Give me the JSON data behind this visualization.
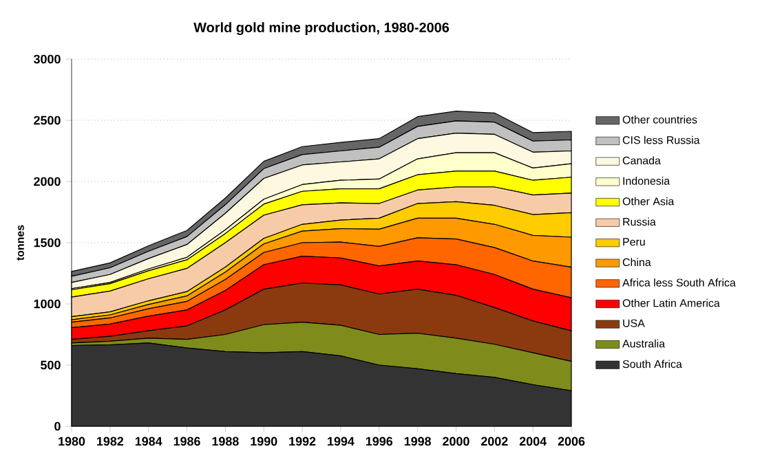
{
  "chart_data": {
    "type": "area",
    "stacked": true,
    "title": "World gold mine production, 1980-2006",
    "ylabel": "tonnes",
    "x": [
      1980,
      1982,
      1984,
      1986,
      1988,
      1990,
      1992,
      1994,
      1996,
      1998,
      2000,
      2002,
      2004,
      2006
    ],
    "xlim": [
      1980,
      2006
    ],
    "ylim": [
      0,
      3000
    ],
    "xticks": [
      1980,
      1982,
      1984,
      1986,
      1988,
      1990,
      1992,
      1994,
      1996,
      1998,
      2000,
      2002,
      2004,
      2006
    ],
    "yticks": [
      0,
      500,
      1000,
      1500,
      2000,
      2500,
      3000
    ],
    "grid": "y",
    "legend": "right",
    "series": [
      {
        "name": "South Africa",
        "color": "#333333",
        "values": [
          660,
          665,
          680,
          640,
          610,
          600,
          610,
          575,
          500,
          470,
          430,
          400,
          340,
          290
        ]
      },
      {
        "name": "Australia",
        "color": "#7f8c1c",
        "values": [
          20,
          30,
          40,
          70,
          140,
          230,
          240,
          250,
          250,
          290,
          290,
          270,
          260,
          240
        ]
      },
      {
        "name": "USA",
        "color": "#8b3a0f",
        "values": [
          30,
          40,
          60,
          110,
          200,
          290,
          320,
          330,
          330,
          360,
          350,
          300,
          260,
          250
        ]
      },
      {
        "name": "Other Latin America",
        "color": "#ff0000",
        "values": [
          95,
          100,
          120,
          130,
          160,
          200,
          220,
          220,
          230,
          230,
          250,
          270,
          260,
          270
        ]
      },
      {
        "name": "Africa less South Africa",
        "color": "#ff6600",
        "values": [
          45,
          50,
          60,
          70,
          90,
          100,
          110,
          130,
          160,
          190,
          210,
          220,
          230,
          250
        ]
      },
      {
        "name": "China",
        "color": "#ff9900",
        "values": [
          20,
          25,
          35,
          45,
          60,
          70,
          95,
          110,
          140,
          160,
          170,
          190,
          210,
          245
        ]
      },
      {
        "name": "Peru",
        "color": "#ffcc00",
        "values": [
          25,
          25,
          30,
          35,
          40,
          45,
          55,
          70,
          90,
          120,
          135,
          155,
          170,
          200
        ]
      },
      {
        "name": "Russia",
        "color": "#f8cba8",
        "values": [
          160,
          170,
          180,
          190,
          200,
          190,
          160,
          140,
          120,
          110,
          120,
          150,
          160,
          160
        ]
      },
      {
        "name": "Other Asia",
        "color": "#ffff00",
        "values": [
          60,
          60,
          65,
          70,
          75,
          90,
          110,
          115,
          120,
          125,
          130,
          130,
          120,
          130
        ]
      },
      {
        "name": "Indonesia",
        "color": "#ffffcc",
        "values": [
          10,
          10,
          15,
          20,
          30,
          40,
          55,
          70,
          80,
          130,
          150,
          150,
          100,
          110
        ]
      },
      {
        "name": "Canada",
        "color": "#fff8e0",
        "values": [
          50,
          65,
          85,
          105,
          135,
          170,
          160,
          150,
          165,
          165,
          160,
          150,
          130,
          105
        ]
      },
      {
        "name": "CIS less Russia",
        "color": "#c0c0c0",
        "values": [
          50,
          55,
          60,
          65,
          70,
          80,
          85,
          90,
          95,
          100,
          100,
          100,
          90,
          90
        ]
      },
      {
        "name": "Other countries",
        "color": "#666666",
        "values": [
          40,
          40,
          45,
          50,
          55,
          60,
          65,
          70,
          70,
          80,
          80,
          75,
          70,
          70
        ]
      }
    ]
  }
}
